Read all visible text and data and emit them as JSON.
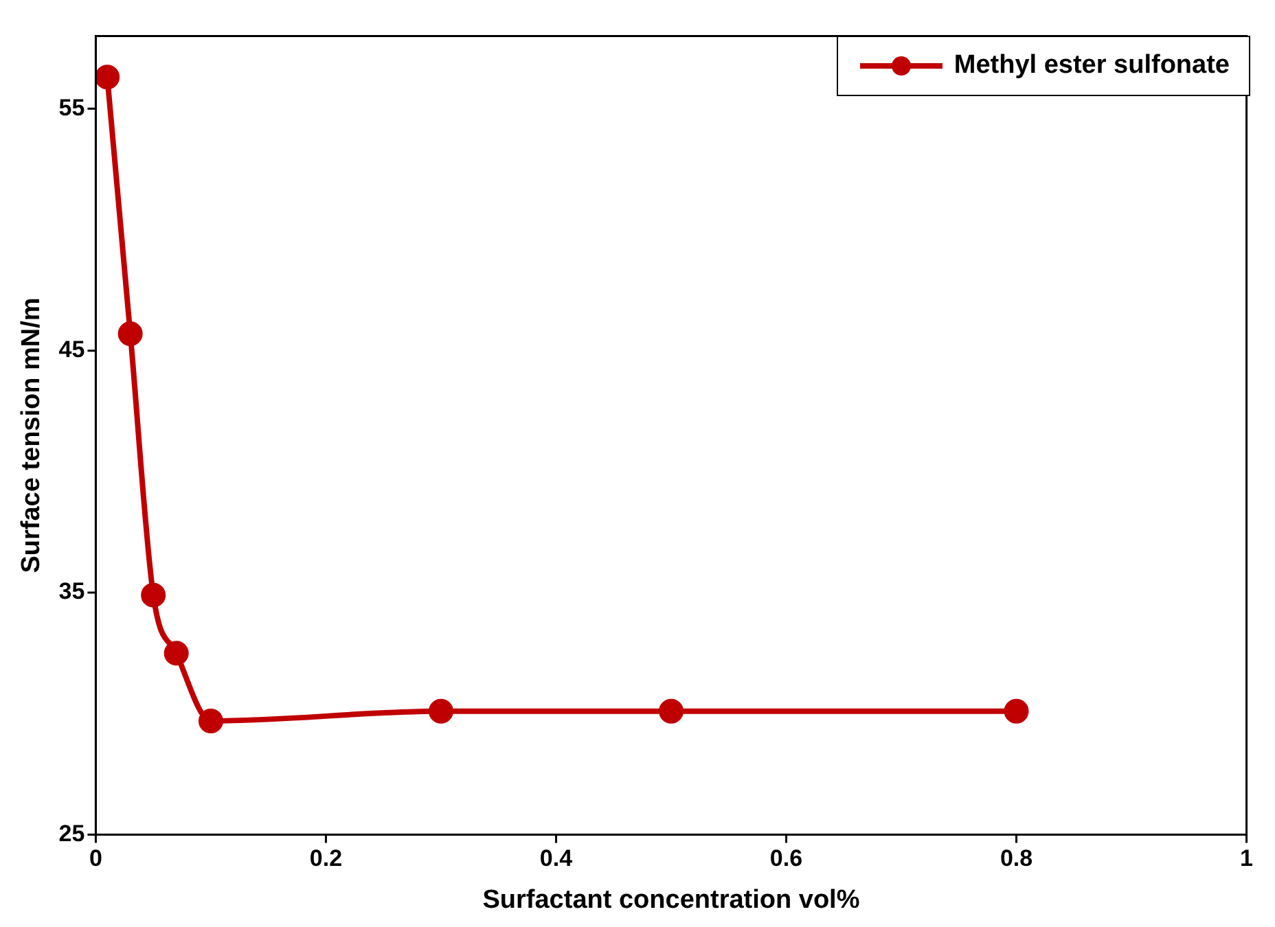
{
  "chart_data": {
    "type": "line",
    "xlabel": "Surfactant concentration vol%",
    "ylabel": "Surface tension mN/m",
    "x": [
      0.01,
      0.03,
      0.05,
      0.07,
      0.1,
      0.3,
      0.5,
      0.8
    ],
    "series": [
      {
        "name": "Methyl ester sulfonate",
        "color": "#c00000",
        "values": [
          56.3,
          45.7,
          34.9,
          32.5,
          29.7,
          30.1,
          30.1,
          30.1
        ]
      }
    ],
    "xlim": [
      0,
      1
    ],
    "xticks": [
      0,
      0.2,
      0.4,
      0.6,
      0.8,
      1
    ],
    "ylim": [
      25,
      58
    ],
    "yticks": [
      25,
      35,
      45,
      55
    ],
    "grid": false,
    "legend": "top right",
    "marker": "circle",
    "line_style": "solid"
  }
}
